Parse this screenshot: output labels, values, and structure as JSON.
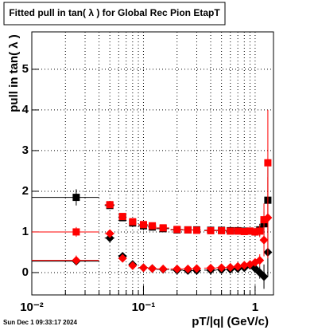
{
  "chart_data": {
    "type": "errorbar",
    "title": "Fitted pull in tan( λ ) for Global Rec Pion EtapT",
    "x_label": "pT/|q| (GeV/c)",
    "y_label": "pull in tan( λ )",
    "timestamp": "Sun Dec  1 09:33:17 2024",
    "log_x": true,
    "grid": true,
    "xlim": [
      0.01,
      1.46
    ],
    "ylim": [
      -0.55,
      5.92
    ],
    "xticks": [
      {
        "value": 0.01,
        "label": "10⁻²"
      },
      {
        "value": 0.1,
        "label": "10⁻¹"
      },
      1
    ],
    "xminorticks": [
      0.02,
      0.03,
      0.04,
      0.05,
      0.06,
      0.07,
      0.08,
      0.09,
      0.2,
      0.3,
      0.4,
      0.5,
      0.6,
      0.7,
      0.8,
      0.9
    ],
    "yticks": [
      0,
      1,
      2,
      3,
      4,
      5
    ],
    "x": [
      0.025,
      0.05,
      0.065,
      0.08,
      0.1,
      0.12,
      0.15,
      0.2,
      0.25,
      0.3,
      0.4,
      0.5,
      0.6,
      0.7,
      0.8,
      0.9,
      1.0,
      1.1,
      1.2,
      1.3
    ],
    "x_err": [
      0.015,
      0.005,
      0.005,
      0.005,
      0.01,
      0.01,
      0.02,
      0.025,
      0.025,
      0.025,
      0.05,
      0.05,
      0.05,
      0.05,
      0.05,
      0.05,
      0.05,
      0.05,
      0.05,
      0.05
    ],
    "series": [
      {
        "color": "#000000",
        "marker": "square",
        "values": [
          1.85,
          1.65,
          1.35,
          1.22,
          1.15,
          1.12,
          1.08,
          1.05,
          1.05,
          1.05,
          1.04,
          1.04,
          1.03,
          1.03,
          1.02,
          1.02,
          1.0,
          1.05,
          1.2,
          1.78
        ],
        "errors": [
          0.2,
          0.06,
          0.05,
          0.04,
          0.03,
          0.03,
          0.03,
          0.03,
          0.03,
          0.03,
          0.03,
          0.03,
          0.04,
          0.05,
          0.06,
          0.08,
          0.1,
          0.15,
          0.3,
          0.8
        ]
      },
      {
        "color": "#ff0000",
        "marker": "square",
        "values": [
          1.0,
          1.67,
          1.38,
          1.25,
          1.18,
          1.15,
          1.1,
          1.06,
          1.05,
          1.04,
          1.03,
          1.03,
          1.02,
          1.02,
          1.01,
          1.02,
          1.0,
          1.02,
          1.3,
          2.7
        ],
        "errors": [
          0.12,
          0.05,
          0.04,
          0.03,
          0.03,
          0.03,
          0.03,
          0.03,
          0.03,
          0.03,
          0.03,
          0.03,
          0.04,
          0.05,
          0.06,
          0.08,
          0.1,
          0.15,
          0.4,
          1.3
        ]
      },
      {
        "color": "#000000",
        "marker": "diamond",
        "values": [
          0.28,
          0.85,
          0.4,
          0.2,
          0.12,
          0.1,
          0.08,
          0.06,
          0.05,
          0.05,
          0.06,
          0.07,
          0.08,
          0.1,
          0.12,
          0.18,
          0.1,
          0.0,
          -0.1,
          0.5
        ],
        "errors": [
          0.1,
          0.05,
          0.04,
          0.03,
          0.03,
          0.03,
          0.03,
          0.03,
          0.03,
          0.03,
          0.03,
          0.03,
          0.04,
          0.05,
          0.06,
          0.08,
          0.1,
          0.15,
          0.3,
          0.6
        ]
      },
      {
        "color": "#ff0000",
        "marker": "diamond",
        "values": [
          0.3,
          0.96,
          0.35,
          0.17,
          0.12,
          0.1,
          0.09,
          0.09,
          0.09,
          0.1,
          0.11,
          0.12,
          0.13,
          0.15,
          0.18,
          0.2,
          0.25,
          0.3,
          0.8,
          1.35
        ],
        "errors": [
          0.12,
          0.05,
          0.04,
          0.03,
          0.03,
          0.03,
          0.03,
          0.03,
          0.03,
          0.03,
          0.03,
          0.03,
          0.04,
          0.05,
          0.06,
          0.08,
          0.1,
          0.15,
          0.4,
          1.0
        ]
      }
    ]
  }
}
